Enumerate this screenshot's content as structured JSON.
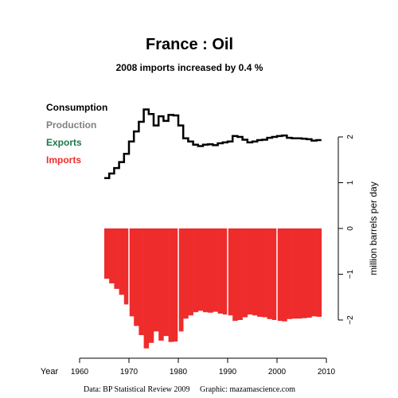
{
  "chart_data": {
    "type": "step-line+bar",
    "title": "France :  Oil",
    "subtitle": "2008 imports increased by 0.4 %",
    "xlabel": "Year",
    "ylabel": "million barrels per day",
    "xlim": [
      1960,
      2010
    ],
    "ylim": [
      -2.6,
      2.2
    ],
    "x_ticks": [
      {
        "value": 1960,
        "label": "1960"
      },
      {
        "value": 1970,
        "label": "1970"
      },
      {
        "value": 1980,
        "label": "1980"
      },
      {
        "value": 1990,
        "label": "1990"
      },
      {
        "value": 2000,
        "label": "2000"
      },
      {
        "value": 2010,
        "label": "2010"
      }
    ],
    "y_ticks": [
      {
        "value": 2,
        "label": "2"
      },
      {
        "value": 1,
        "label": "1"
      },
      {
        "value": 0,
        "label": "0"
      },
      {
        "value": -1,
        "label": "−1"
      },
      {
        "value": -2,
        "label": "−2"
      }
    ],
    "legend": [
      {
        "name": "Consumption",
        "color": "#000000"
      },
      {
        "name": "Production",
        "color": "#808080"
      },
      {
        "name": "Exports",
        "color": "#1a7a4c"
      },
      {
        "name": "Imports",
        "color": "#ee2c2c"
      }
    ],
    "legend_position": "top-left",
    "years": [
      1965,
      1966,
      1967,
      1968,
      1969,
      1970,
      1971,
      1972,
      1973,
      1974,
      1975,
      1976,
      1977,
      1978,
      1979,
      1980,
      1981,
      1982,
      1983,
      1984,
      1985,
      1986,
      1987,
      1988,
      1989,
      1990,
      1991,
      1992,
      1993,
      1994,
      1995,
      1996,
      1997,
      1998,
      1999,
      2000,
      2001,
      2002,
      2003,
      2004,
      2005,
      2006,
      2007,
      2008
    ],
    "series": [
      {
        "name": "Consumption",
        "color": "#000000",
        "values": [
          1.1,
          1.2,
          1.32,
          1.45,
          1.63,
          1.9,
          2.12,
          2.33,
          2.6,
          2.5,
          2.25,
          2.45,
          2.35,
          2.48,
          2.47,
          2.25,
          1.97,
          1.9,
          1.83,
          1.8,
          1.83,
          1.84,
          1.82,
          1.86,
          1.88,
          1.9,
          2.02,
          2.0,
          1.94,
          1.88,
          1.9,
          1.93,
          1.94,
          1.98,
          2.0,
          2.02,
          2.03,
          1.98,
          1.97,
          1.97,
          1.96,
          1.95,
          1.92,
          1.93
        ]
      },
      {
        "name": "Imports",
        "color": "#ee2c2c",
        "values": [
          -1.1,
          -1.2,
          -1.32,
          -1.45,
          -1.66,
          -1.92,
          -2.13,
          -2.33,
          -2.62,
          -2.5,
          -2.25,
          -2.45,
          -2.35,
          -2.48,
          -2.47,
          -2.25,
          -1.97,
          -1.9,
          -1.83,
          -1.8,
          -1.83,
          -1.84,
          -1.82,
          -1.86,
          -1.88,
          -1.9,
          -2.02,
          -2.0,
          -1.94,
          -1.88,
          -1.9,
          -1.93,
          -1.94,
          -1.98,
          -2.0,
          -2.02,
          -2.03,
          -1.98,
          -1.97,
          -1.97,
          -1.96,
          -1.95,
          -1.92,
          -1.93
        ]
      }
    ],
    "source": "Data: BP Statistical Review 2009     Graphic: mazamascience.com"
  }
}
